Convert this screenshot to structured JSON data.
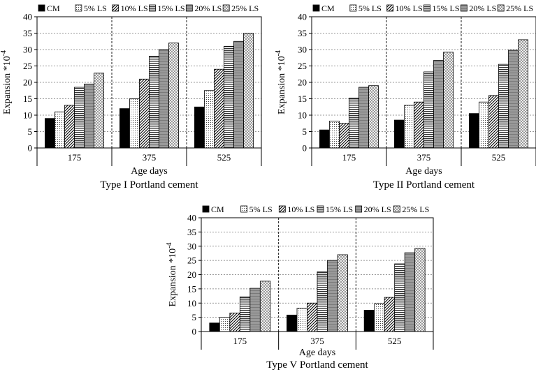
{
  "chart_data": [
    {
      "type": "bar",
      "title": "Type I Portland cement",
      "xlabel": "Age days",
      "ylabel": "Expansion *10",
      "ylabel_exp": "-4",
      "categories": [
        "175",
        "375",
        "525"
      ],
      "ylim": [
        0,
        40
      ],
      "yticks": [
        "0",
        "5",
        "10",
        "15",
        "20",
        "25",
        "30",
        "35",
        "40"
      ],
      "grid": true,
      "legend_position": "top",
      "series": [
        {
          "name": "CM",
          "values": [
            9,
            12,
            12.5
          ]
        },
        {
          "name": "5% LS",
          "values": [
            11,
            15,
            17.5
          ]
        },
        {
          "name": "10% LS",
          "values": [
            13,
            21,
            24
          ]
        },
        {
          "name": "15% LS",
          "values": [
            18.5,
            28,
            31
          ]
        },
        {
          "name": "20% LS",
          "values": [
            19.5,
            30,
            32.5
          ]
        },
        {
          "name": "25% LS",
          "values": [
            22.8,
            32,
            35
          ]
        }
      ]
    },
    {
      "type": "bar",
      "title": "Type II Portland cement",
      "xlabel": "Age days",
      "ylabel": "Expansion *10",
      "ylabel_exp": "-4",
      "categories": [
        "175",
        "375",
        "525"
      ],
      "ylim": [
        0,
        40
      ],
      "yticks": [
        "0",
        "5",
        "10",
        "15",
        "20",
        "25",
        "30",
        "35",
        "40"
      ],
      "grid": true,
      "legend_position": "top",
      "series": [
        {
          "name": "CM",
          "values": [
            5.5,
            8.5,
            10.5
          ]
        },
        {
          "name": "5% LS",
          "values": [
            8.2,
            13,
            14
          ]
        },
        {
          "name": "10% LS",
          "values": [
            7.5,
            14,
            16
          ]
        },
        {
          "name": "15% LS",
          "values": [
            15.2,
            23.2,
            25.5
          ]
        },
        {
          "name": "20% LS",
          "values": [
            18.5,
            26.7,
            29.8
          ]
        },
        {
          "name": "25% LS",
          "values": [
            19,
            29.2,
            33
          ]
        }
      ]
    },
    {
      "type": "bar",
      "title": "Type V Portland cement",
      "xlabel": "Age days",
      "ylabel": "Expansion *10",
      "ylabel_exp": "-4",
      "categories": [
        "175",
        "375",
        "525"
      ],
      "ylim": [
        0,
        40
      ],
      "yticks": [
        "0",
        "5",
        "10",
        "15",
        "20",
        "25",
        "30",
        "35",
        "40"
      ],
      "grid": true,
      "legend_position": "top",
      "series": [
        {
          "name": "CM",
          "values": [
            3,
            5.8,
            7.5
          ]
        },
        {
          "name": "5% LS",
          "values": [
            5,
            8.2,
            9.8
          ]
        },
        {
          "name": "10% LS",
          "values": [
            6.5,
            10,
            12
          ]
        },
        {
          "name": "15% LS",
          "values": [
            12.2,
            21,
            23.8
          ]
        },
        {
          "name": "20% LS",
          "values": [
            15.2,
            25,
            27.7
          ]
        },
        {
          "name": "25% LS",
          "values": [
            17.7,
            27,
            29.2
          ]
        }
      ]
    }
  ]
}
